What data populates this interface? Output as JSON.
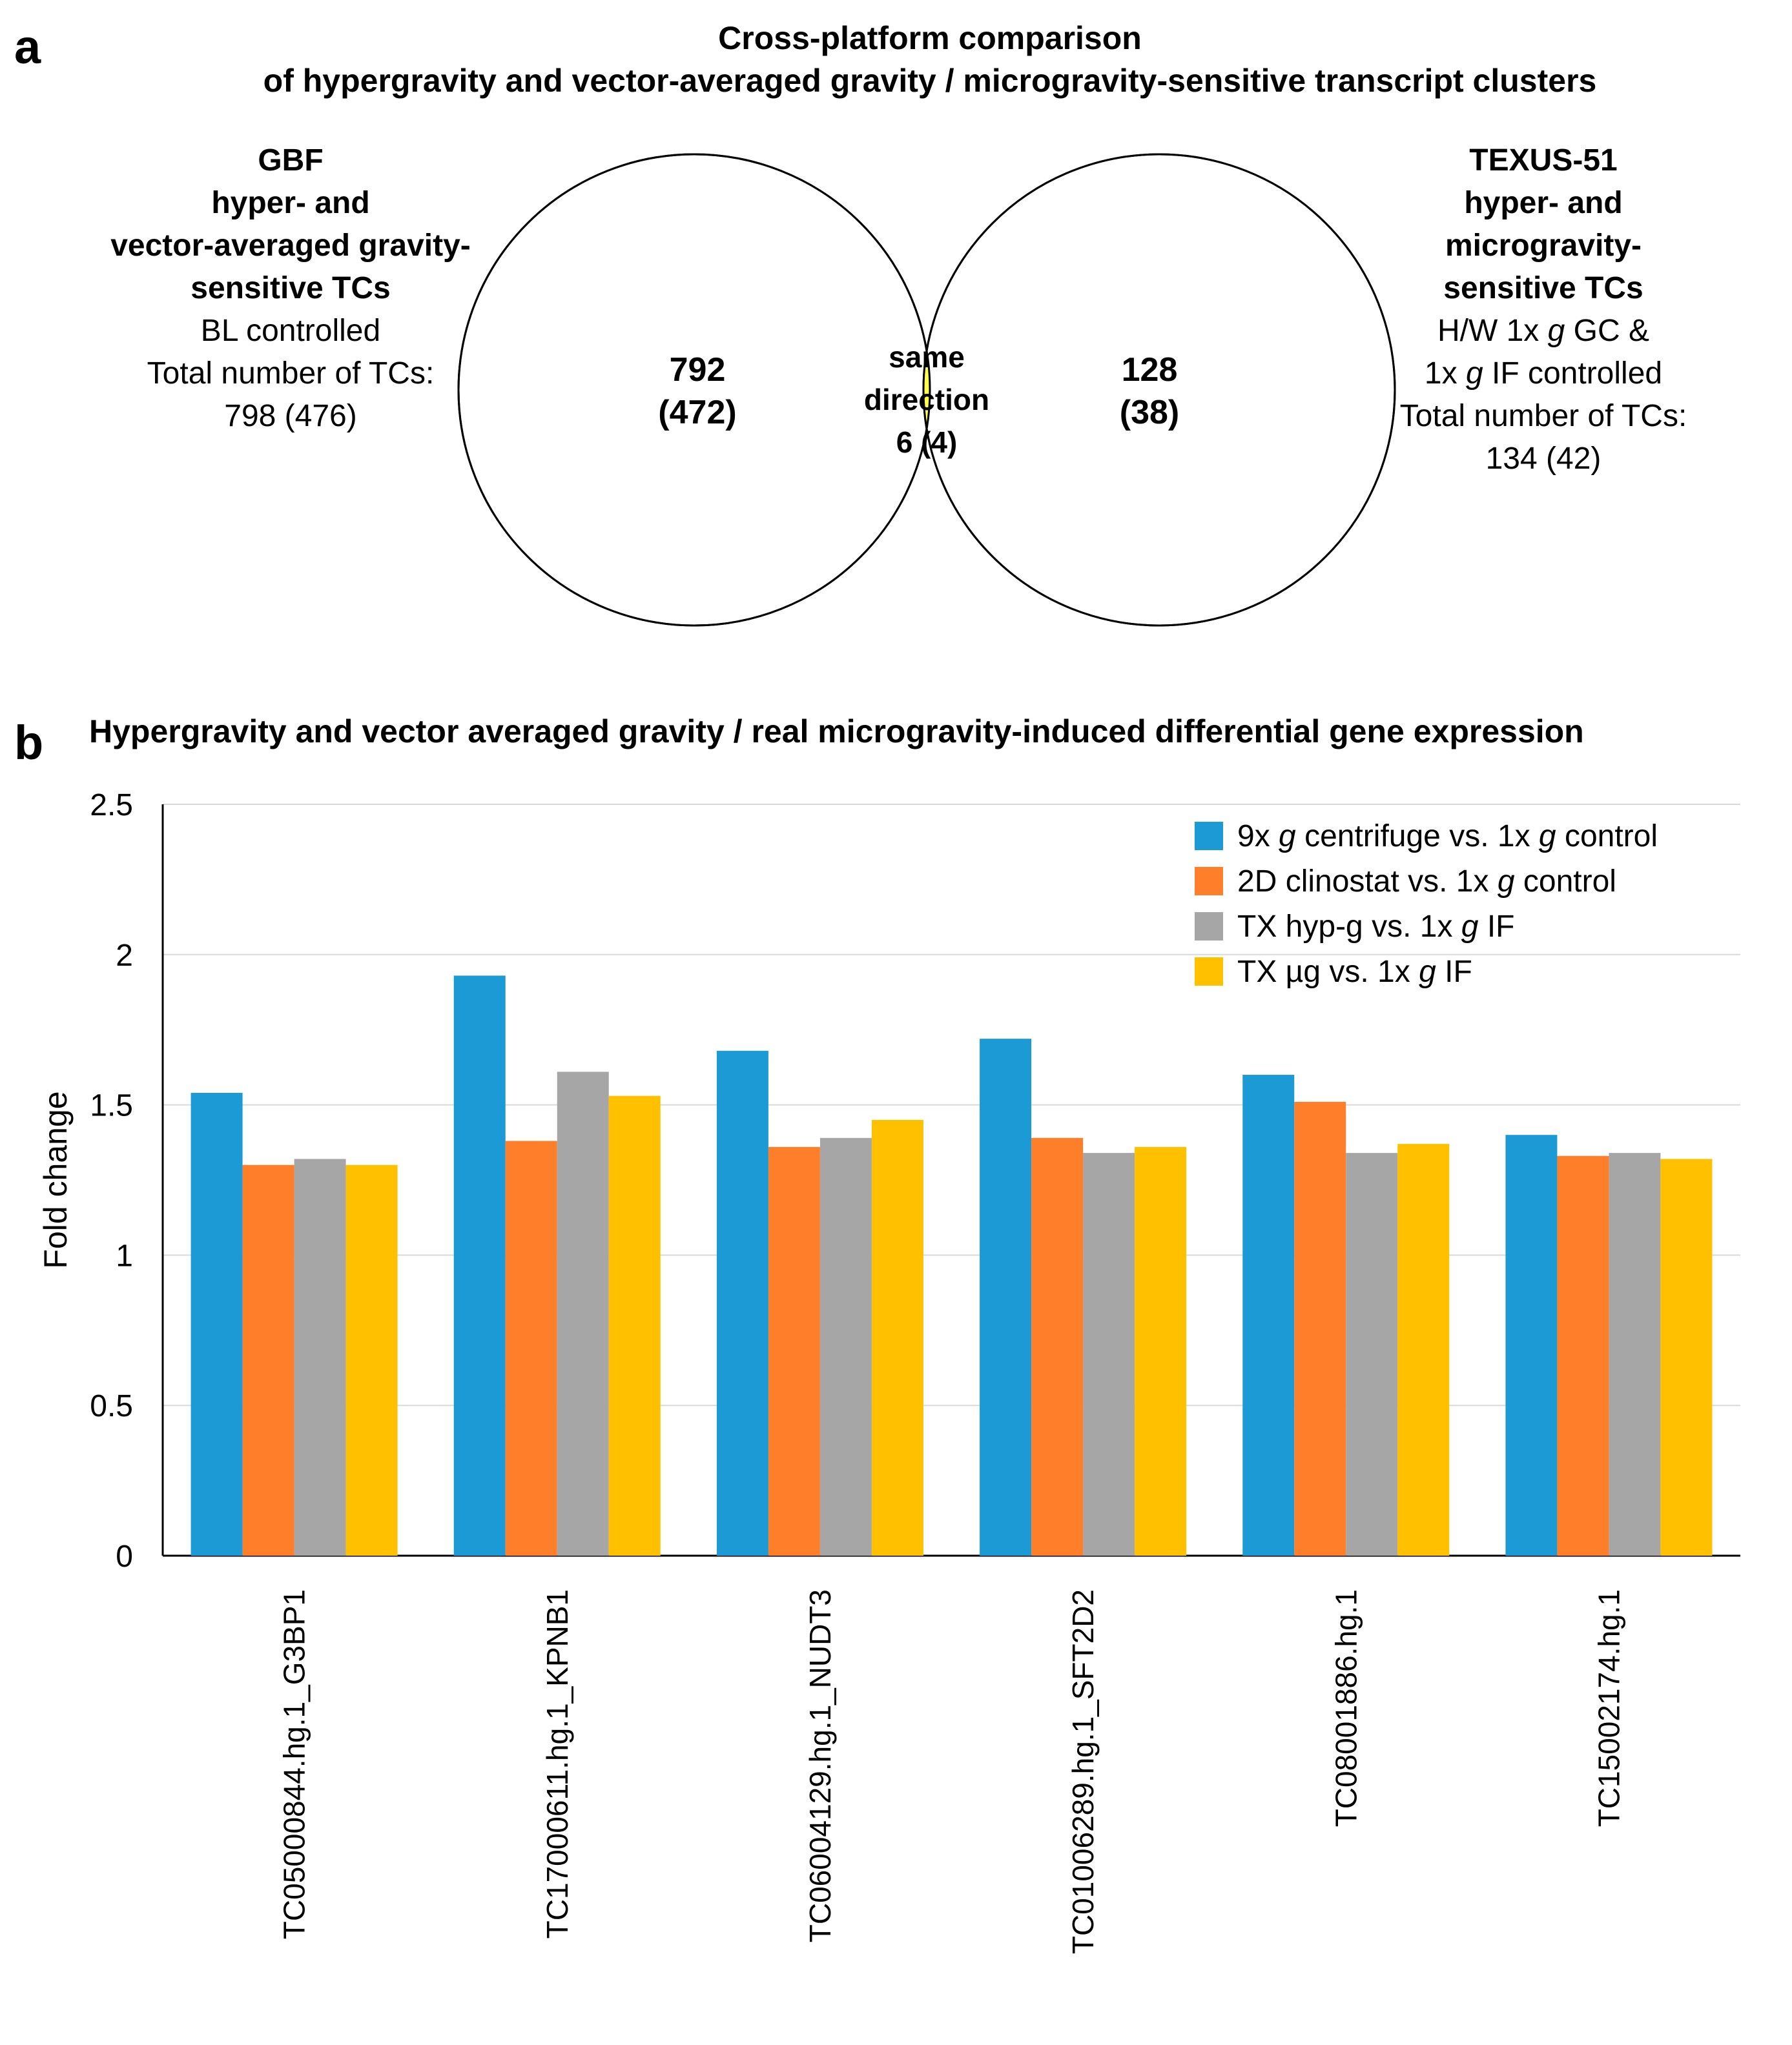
{
  "panel_a": {
    "letter": "a",
    "title_line1": "Cross-platform comparison",
    "title_line2": "of hypergravity and vector-averaged gravity / microgravity-sensitive transcript clusters",
    "left": {
      "line1": "GBF",
      "line2": "hyper- and",
      "line3": "vector-averaged gravity-",
      "line4": "sensitive TCs",
      "line5": "BL controlled",
      "line6": "Total number of TCs:",
      "line7": "798 (476)"
    },
    "right": {
      "line1": "TEXUS-51",
      "line2": "hyper- and",
      "line3": "microgravity-",
      "line4": "sensitive TCs",
      "line5_pre": "H/W 1x ",
      "line5_g": "g",
      "line5_post": " GC &",
      "line6_pre": "1x ",
      "line6_g": "g",
      "line6_post": " IF controlled",
      "line7": "Total number of TCs:",
      "line8": "134 (42)"
    },
    "left_count": "792",
    "left_count_sub": "(472)",
    "overlap_line1": "same",
    "overlap_line2": "direction",
    "overlap_line3": "6 (4)",
    "right_count": "128",
    "right_count_sub": "(38)",
    "overlap_color": "#FFFF4D"
  },
  "panel_b": {
    "letter": "b",
    "title": "Hypergravity and vector averaged gravity / real microgravity-induced differential gene expression"
  },
  "legend": [
    {
      "pre": "9x ",
      "g": "g",
      "mid": " centrifuge vs. 1x ",
      "g2": "g",
      "post": " control"
    },
    {
      "pre": "2D clinostat vs. 1x ",
      "g": "g",
      "mid": " control",
      "g2": "",
      "post": ""
    },
    {
      "pre": "TX hyp-g vs. 1x ",
      "g": "g",
      "mid": " IF",
      "g2": "",
      "post": ""
    },
    {
      "pre": "TX µg vs. 1x ",
      "g": "g",
      "mid": " IF",
      "g2": "",
      "post": ""
    }
  ],
  "chart_data": {
    "type": "bar",
    "title": "Hypergravity and vector averaged gravity / real microgravity-induced differential gene expression",
    "xlabel": "",
    "ylabel": "Fold change",
    "ylim": [
      0,
      2.5
    ],
    "yticks": [
      0,
      0.5,
      1,
      1.5,
      2,
      2.5
    ],
    "ytick_labels": [
      "0",
      "0.5",
      "1",
      "1.5",
      "2",
      "2.5"
    ],
    "grid": true,
    "legend_position": "top-right",
    "categories": [
      "TC05000844.hg.1_G3BP1",
      "TC17000611.hg.1_KPNB1",
      "TC06004129.hg.1_NUDT3",
      "TC01006289.hg.1_SFT2D2",
      "TC08001886.hg.1",
      "TC15002174.hg.1"
    ],
    "series": [
      {
        "name": "9x g centrifuge vs. 1x g control",
        "color": "#1B9AD6",
        "values": [
          1.54,
          1.93,
          1.68,
          1.72,
          1.6,
          1.4
        ]
      },
      {
        "name": "2D clinostat vs. 1x g control",
        "color": "#FF7E2A",
        "values": [
          1.3,
          1.38,
          1.36,
          1.39,
          1.51,
          1.33
        ]
      },
      {
        "name": "TX hyp-g vs. 1x g IF",
        "color": "#A6A6A6",
        "values": [
          1.32,
          1.61,
          1.39,
          1.34,
          1.34,
          1.34
        ]
      },
      {
        "name": "TX µg vs. 1x g IF",
        "color": "#FFC000",
        "values": [
          1.3,
          1.53,
          1.45,
          1.36,
          1.37,
          1.32
        ]
      }
    ]
  }
}
